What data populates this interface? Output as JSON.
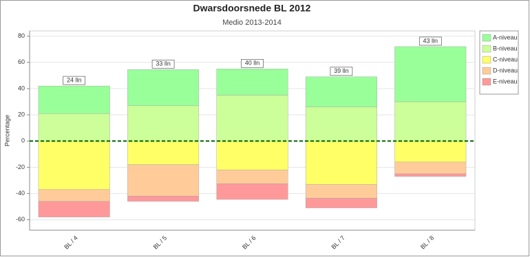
{
  "chart_data": {
    "type": "diverging_stacked_bar",
    "title": "Dwarsdoorsnede BL 2012",
    "subtitle": "Medio 2013-2014",
    "y_label": "Percentage",
    "categories": [
      "BL / 4",
      "BL / 5",
      "BL / 6",
      "BL / 7",
      "BL / 8"
    ],
    "bar_labels": [
      "24 lln",
      "33 lln",
      "40 lln",
      "39 lln",
      "43 lln"
    ],
    "series": [
      {
        "name": "A-niveau",
        "color": "#99ff99",
        "values": [
          21,
          27.5,
          20,
          23,
          42
        ]
      },
      {
        "name": "B-niveau",
        "color": "#ccff99",
        "values": [
          21,
          27,
          35,
          26,
          30
        ]
      },
      {
        "name": "C-niveau",
        "color": "#ffff66",
        "values": [
          -37,
          -18,
          -22,
          -33,
          -16
        ]
      },
      {
        "name": "D-niveau",
        "color": "#ffcc99",
        "values": [
          -9,
          -24,
          -10.5,
          -10.5,
          -9
        ]
      },
      {
        "name": "E-niveau",
        "color": "#ff9999",
        "values": [
          -12,
          -4,
          -12,
          -7.5,
          -2
        ]
      }
    ],
    "ylim": [
      -68,
      84
    ],
    "yticks": [
      -60,
      -40,
      -20,
      0,
      20,
      40,
      60,
      80
    ],
    "grid": true,
    "zero_line_color": "#006600",
    "legend": "right"
  }
}
